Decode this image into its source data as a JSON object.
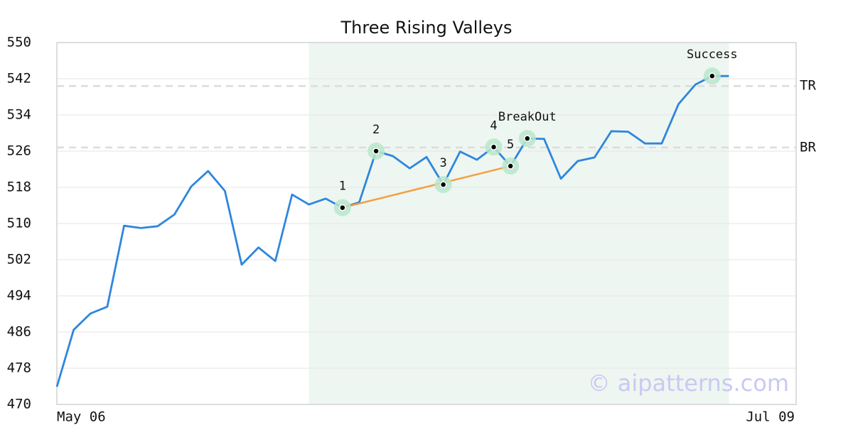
{
  "chart_data": {
    "type": "line",
    "title": "Three Rising Valleys",
    "categories": [
      "May 06",
      null,
      null,
      null,
      null,
      null,
      null,
      null,
      null,
      null,
      null,
      null,
      null,
      null,
      null,
      null,
      null,
      null,
      null,
      null,
      null,
      null,
      null,
      null,
      null,
      null,
      null,
      null,
      null,
      null,
      null,
      null,
      null,
      null,
      null,
      null,
      null,
      null,
      null,
      null,
      null,
      null,
      null,
      null,
      "Jul 09"
    ],
    "series": [
      {
        "color": "#2e86de",
        "values": [
          473.9,
          486.5,
          490.1,
          491.6,
          509.5,
          509.0,
          509.4,
          512.0,
          518.2,
          521.6,
          517.2,
          500.9,
          504.7,
          501.7,
          516.4,
          514.2,
          515.5,
          513.5,
          514.7,
          526.0,
          524.9,
          522.2,
          524.7,
          518.6,
          525.9,
          524.1,
          526.9,
          522.7,
          528.8,
          528.7,
          519.9,
          523.8,
          524.6,
          530.4,
          530.3,
          527.7,
          527.7,
          536.4,
          540.7,
          542.6,
          542.6,
          null,
          null,
          null,
          null
        ]
      }
    ],
    "ylim": [
      470,
      550
    ],
    "yticks": [
      470,
      478,
      486,
      494,
      502,
      510,
      518,
      526,
      534,
      542,
      550
    ],
    "grid": true,
    "highlight": {
      "from": 15,
      "to": 40,
      "color": "#eef6f1"
    },
    "trendline": {
      "from": 17,
      "to": 27,
      "color": "#f4a040"
    },
    "hlines": [
      {
        "label": "TR",
        "value": 540.4
      },
      {
        "label": "BR",
        "value": 526.8
      }
    ],
    "markers": [
      {
        "label": "1",
        "index": 17
      },
      {
        "label": "2",
        "index": 19
      },
      {
        "label": "3",
        "index": 23
      },
      {
        "label": "4",
        "index": 26
      },
      {
        "label": "5",
        "index": 27
      },
      {
        "label": "BreakOut",
        "index": 28
      },
      {
        "label": "Success",
        "index": 39
      }
    ],
    "watermark": "© aipatterns.com"
  }
}
